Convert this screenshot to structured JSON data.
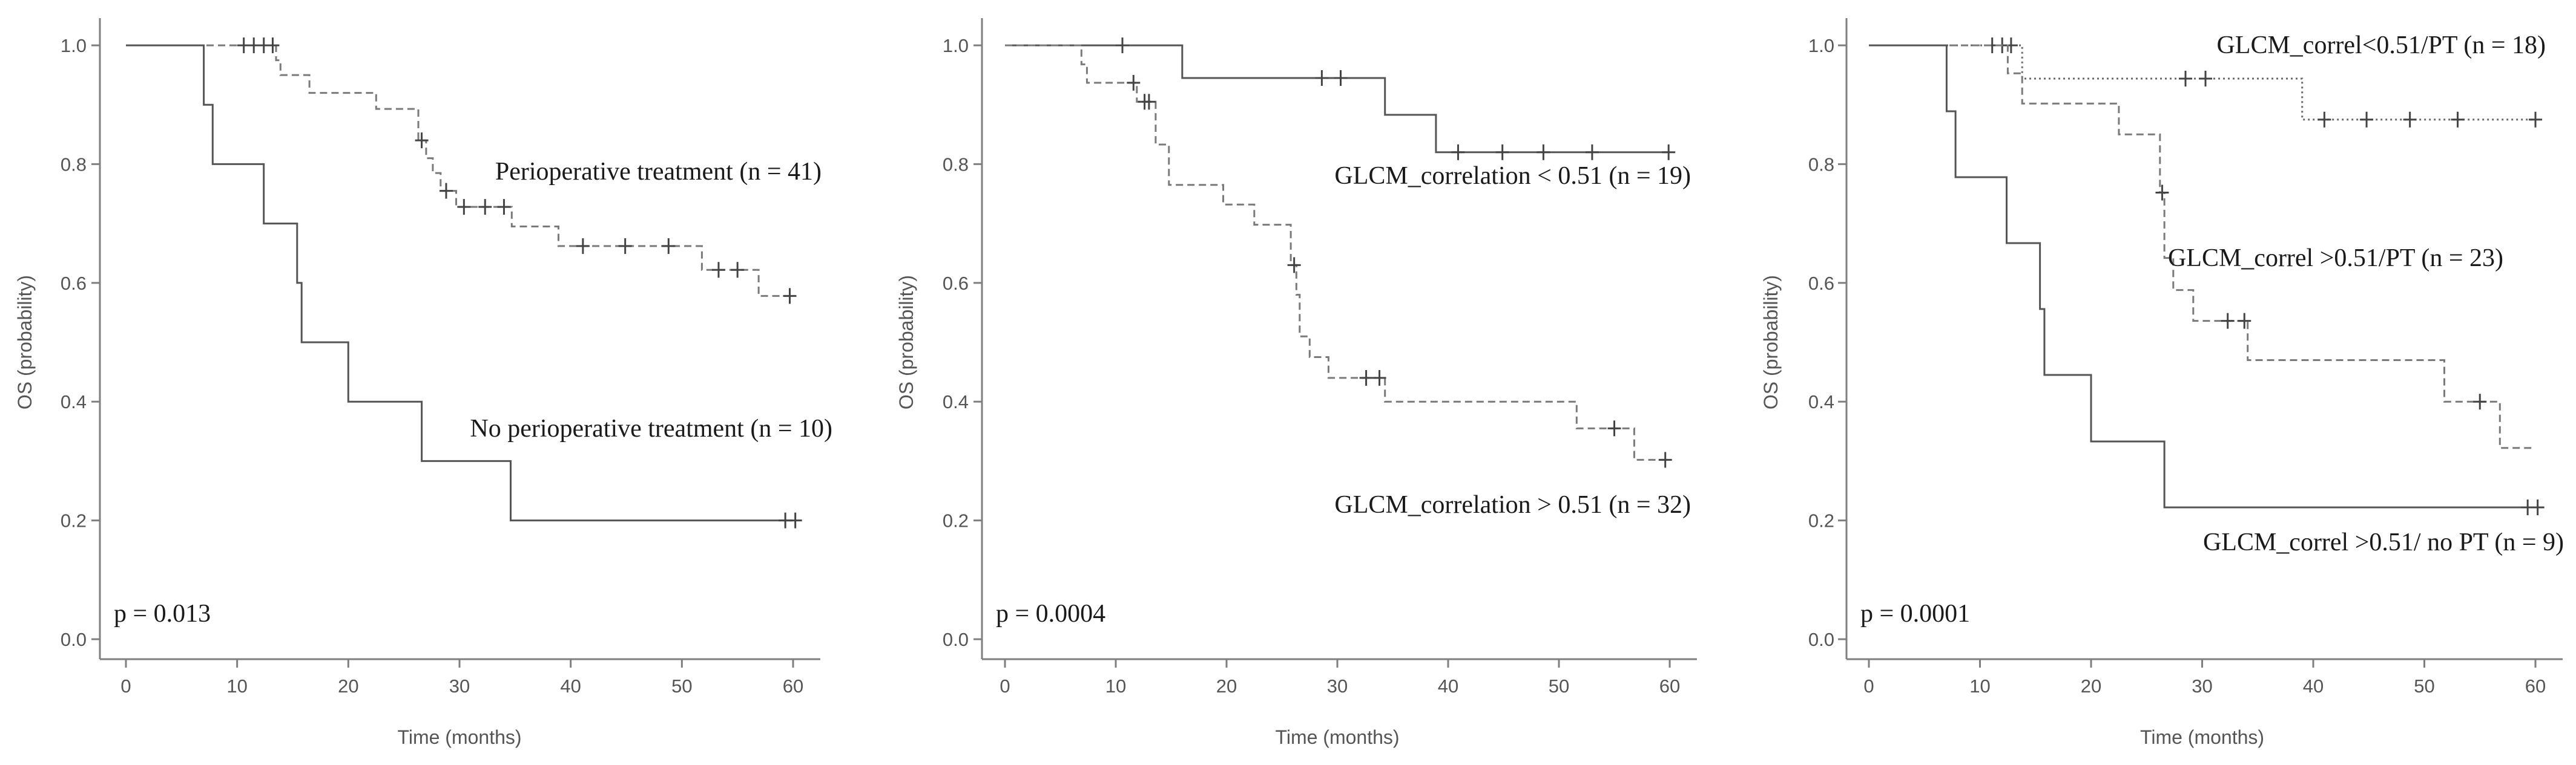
{
  "chart_data": [
    {
      "type": "line",
      "subtype": "kaplan-meier",
      "title": "",
      "xlabel": "Time (months)",
      "ylabel": "OS (probability)",
      "xlim": [
        0,
        60
      ],
      "ylim": [
        0,
        1
      ],
      "xticks": [
        0,
        10,
        20,
        30,
        40,
        50,
        60
      ],
      "yticks": [
        "0.0",
        "0.2",
        "0.4",
        "0.6",
        "0.8",
        "1.0"
      ],
      "grid": false,
      "p_value": "p = 0.013",
      "series": [
        {
          "name": "Perioperative treatment (n = 41)",
          "line_style": "dashed",
          "color": "#7a7a7a",
          "steps": [
            [
              0,
              1.0
            ],
            [
              13.5,
              0.975
            ],
            [
              13.9,
              0.95
            ],
            [
              16.5,
              0.92
            ],
            [
              22.5,
              0.893
            ],
            [
              26.3,
              0.84
            ],
            [
              27.0,
              0.81
            ],
            [
              27.6,
              0.785
            ],
            [
              28.3,
              0.755
            ],
            [
              29.7,
              0.728
            ],
            [
              34.7,
              0.695
            ],
            [
              38.9,
              0.662
            ],
            [
              51.8,
              0.622
            ],
            [
              56.9,
              0.578
            ],
            [
              60,
              0.578
            ]
          ],
          "censored": [
            [
              10.6,
              1.0
            ],
            [
              11.5,
              1.0
            ],
            [
              12.4,
              1.0
            ],
            [
              13.2,
              1.0
            ],
            [
              26.6,
              0.84
            ],
            [
              28.8,
              0.755
            ],
            [
              30.4,
              0.728
            ],
            [
              32.3,
              0.728
            ],
            [
              34.0,
              0.728
            ],
            [
              41.1,
              0.662
            ],
            [
              44.9,
              0.662
            ],
            [
              48.8,
              0.662
            ],
            [
              53.3,
              0.622
            ],
            [
              55.0,
              0.622
            ],
            [
              59.7,
              0.578
            ]
          ],
          "label_text": "Perioperative treatment (n = 41)"
        },
        {
          "name": "No perioperative treatment (n = 10)",
          "line_style": "solid",
          "color": "#555555",
          "steps": [
            [
              0,
              1.0
            ],
            [
              7.0,
              0.9
            ],
            [
              7.8,
              0.8
            ],
            [
              12.4,
              0.7
            ],
            [
              15.4,
              0.6
            ],
            [
              15.8,
              0.5
            ],
            [
              20.0,
              0.4
            ],
            [
              26.6,
              0.3
            ],
            [
              34.6,
              0.2
            ],
            [
              60,
              0.2
            ]
          ],
          "censored": [
            [
              59.3,
              0.2
            ],
            [
              60.2,
              0.2
            ]
          ],
          "label_text": "No perioperative treatment (n = 10)"
        }
      ]
    },
    {
      "type": "line",
      "subtype": "kaplan-meier",
      "title": "",
      "xlabel": "Time (months)",
      "ylabel": "OS (probability)",
      "xlim": [
        0,
        60
      ],
      "ylim": [
        0,
        1
      ],
      "xticks": [
        0,
        10,
        20,
        30,
        40,
        50,
        60
      ],
      "yticks": [
        "0.0",
        "0.2",
        "0.4",
        "0.6",
        "0.8",
        "1.0"
      ],
      "grid": false,
      "p_value": "p = 0.0004",
      "series": [
        {
          "name": "GLCM_correlation < 0.51 (n = 19)",
          "line_style": "solid",
          "color": "#555555",
          "steps": [
            [
              0,
              1.0
            ],
            [
              16.0,
              0.945
            ],
            [
              34.3,
              0.883
            ],
            [
              38.9,
              0.82
            ],
            [
              60,
              0.82
            ]
          ],
          "censored": [
            [
              10.6,
              1.0
            ],
            [
              28.6,
              0.945
            ],
            [
              30.3,
              0.945
            ],
            [
              40.9,
              0.82
            ],
            [
              44.9,
              0.82
            ],
            [
              48.6,
              0.82
            ],
            [
              53.0,
              0.82
            ],
            [
              59.9,
              0.82
            ]
          ],
          "label_text": "GLCM_correlation < 0.51 (n = 19)"
        },
        {
          "name": "GLCM_correlation > 0.51 (n = 32)",
          "line_style": "dashed",
          "color": "#7a7a7a",
          "steps": [
            [
              0,
              1.0
            ],
            [
              6.9,
              0.968
            ],
            [
              7.4,
              0.937
            ],
            [
              11.9,
              0.905
            ],
            [
              13.6,
              0.833
            ],
            [
              14.8,
              0.765
            ],
            [
              19.7,
              0.732
            ],
            [
              22.5,
              0.698
            ],
            [
              25.8,
              0.63
            ],
            [
              26.3,
              0.58
            ],
            [
              26.6,
              0.51
            ],
            [
              27.5,
              0.475
            ],
            [
              29.2,
              0.44
            ],
            [
              34.3,
              0.4
            ],
            [
              51.6,
              0.355
            ],
            [
              56.8,
              0.302
            ],
            [
              60,
              0.302
            ]
          ],
          "censored": [
            [
              11.6,
              0.937
            ],
            [
              12.6,
              0.905
            ],
            [
              13.0,
              0.905
            ],
            [
              26.1,
              0.63
            ],
            [
              32.6,
              0.44
            ],
            [
              33.8,
              0.44
            ],
            [
              55.0,
              0.355
            ],
            [
              59.6,
              0.302
            ]
          ],
          "label_text": "GLCM_correlation > 0.51 (n = 32)"
        }
      ]
    },
    {
      "type": "line",
      "subtype": "kaplan-meier",
      "title": "",
      "xlabel": "Time (months)",
      "ylabel": "OS (probability)",
      "xlim": [
        0,
        60
      ],
      "ylim": [
        0,
        1
      ],
      "xticks": [
        0,
        10,
        20,
        30,
        40,
        50,
        60
      ],
      "yticks": [
        "0.0",
        "0.2",
        "0.4",
        "0.6",
        "0.8",
        "1.0"
      ],
      "grid": false,
      "p_value": "p = 0.0001",
      "series": [
        {
          "name": "GLCM_correl<0.51/PT (n = 18)",
          "line_style": "dotted",
          "color": "#6a6a6a",
          "steps": [
            [
              0,
              1.0
            ],
            [
              13.8,
              0.944
            ],
            [
              39.0,
              0.875
            ],
            [
              60,
              0.875
            ]
          ],
          "censored": [
            [
              11.1,
              1.0
            ],
            [
              12.0,
              1.0
            ],
            [
              12.8,
              1.0
            ],
            [
              28.5,
              0.944
            ],
            [
              30.3,
              0.944
            ],
            [
              41.0,
              0.875
            ],
            [
              44.8,
              0.875
            ],
            [
              48.7,
              0.875
            ],
            [
              53.0,
              0.875
            ],
            [
              60.0,
              0.875
            ]
          ],
          "label_text": "GLCM_correl<0.51/PT (n = 18)"
        },
        {
          "name": "GLCM_correl >0.51/PT (n = 23)",
          "line_style": "dashed",
          "color": "#7a7a7a",
          "steps": [
            [
              0,
              1.0
            ],
            [
              12.5,
              0.953
            ],
            [
              13.8,
              0.902
            ],
            [
              22.5,
              0.85
            ],
            [
              26.2,
              0.752
            ],
            [
              26.6,
              0.642
            ],
            [
              27.4,
              0.588
            ],
            [
              29.2,
              0.536
            ],
            [
              34.1,
              0.47
            ],
            [
              51.8,
              0.4
            ],
            [
              56.8,
              0.322
            ],
            [
              60,
              0.322
            ]
          ],
          "censored": [
            [
              26.4,
              0.752
            ],
            [
              32.3,
              0.536
            ],
            [
              33.8,
              0.536
            ],
            [
              55.0,
              0.4
            ]
          ],
          "label_text": "GLCM_correl >0.51/PT (n = 23)"
        },
        {
          "name": "GLCM_correl >0.51/ no PT (n = 9)",
          "line_style": "solid",
          "color": "#555555",
          "steps": [
            [
              0,
              1.0
            ],
            [
              7.0,
              0.889
            ],
            [
              7.8,
              0.778
            ],
            [
              12.4,
              0.667
            ],
            [
              15.4,
              0.556
            ],
            [
              15.8,
              0.445
            ],
            [
              20.0,
              0.333
            ],
            [
              26.6,
              0.222
            ],
            [
              60,
              0.222
            ]
          ],
          "censored": [
            [
              59.3,
              0.222
            ],
            [
              60.2,
              0.222
            ]
          ],
          "label_text": "GLCM_correl >0.51/ no PT (n = 9)"
        }
      ]
    }
  ]
}
